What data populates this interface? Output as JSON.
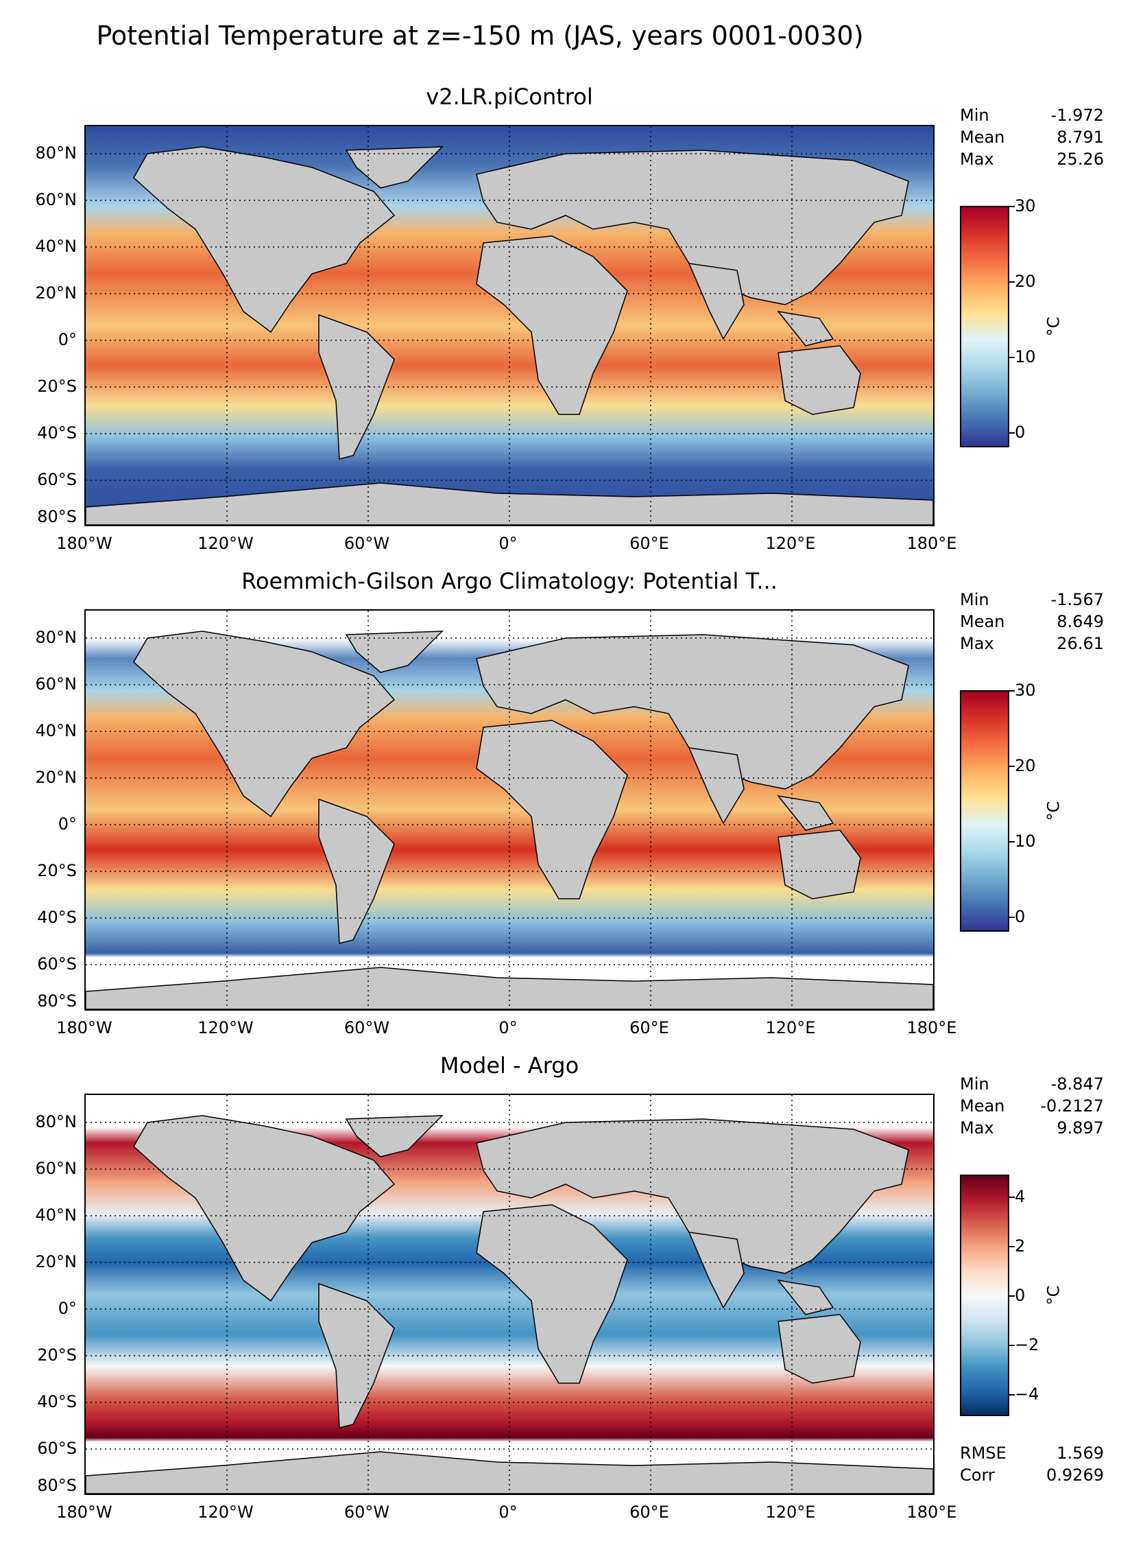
{
  "figure": {
    "suptitle": "Potential Temperature at z=-150 m (JAS, years 0001-0030)"
  },
  "axes": {
    "lat_labels": [
      "80°N",
      "60°N",
      "40°N",
      "20°N",
      "0°",
      "20°S",
      "40°S",
      "60°S",
      "80°S"
    ],
    "lon_labels": [
      "180°W",
      "120°W",
      "60°W",
      "0°",
      "60°E",
      "120°E",
      "180°E"
    ]
  },
  "panels": [
    {
      "title": "v2.LR.piControl",
      "stats": [
        {
          "label": "Min",
          "value": "-1.972"
        },
        {
          "label": "Mean",
          "value": "8.791"
        },
        {
          "label": "Max",
          "value": "25.26"
        }
      ],
      "colorbar": {
        "ticks": [
          "30",
          "20",
          "10",
          "0"
        ],
        "unit": "°C",
        "colormap": "RdYlBu_r"
      }
    },
    {
      "title": "Roemmich-Gilson Argo Climatology: Potential T...",
      "stats": [
        {
          "label": "Min",
          "value": "-1.567"
        },
        {
          "label": "Mean",
          "value": "8.649"
        },
        {
          "label": "Max",
          "value": "26.61"
        }
      ],
      "colorbar": {
        "ticks": [
          "30",
          "20",
          "10",
          "0"
        ],
        "unit": "°C",
        "colormap": "RdYlBu_r"
      }
    },
    {
      "title": "Model - Argo",
      "stats": [
        {
          "label": "Min",
          "value": "-8.847"
        },
        {
          "label": "Mean",
          "value": "-0.2127"
        },
        {
          "label": "Max",
          "value": "9.897"
        }
      ],
      "extra_stats": [
        {
          "label": "RMSE",
          "value": "1.569"
        },
        {
          "label": "Corr",
          "value": "0.9269"
        }
      ],
      "colorbar": {
        "ticks": [
          "4",
          "2",
          "0",
          "−2",
          "−4"
        ],
        "unit": "°C",
        "colormap": "RdBu_r"
      }
    }
  ],
  "colors": {
    "land": "#c8c8c8",
    "coast": "#000000",
    "warm": "#d7301f",
    "cold": "#2c4aa0"
  }
}
